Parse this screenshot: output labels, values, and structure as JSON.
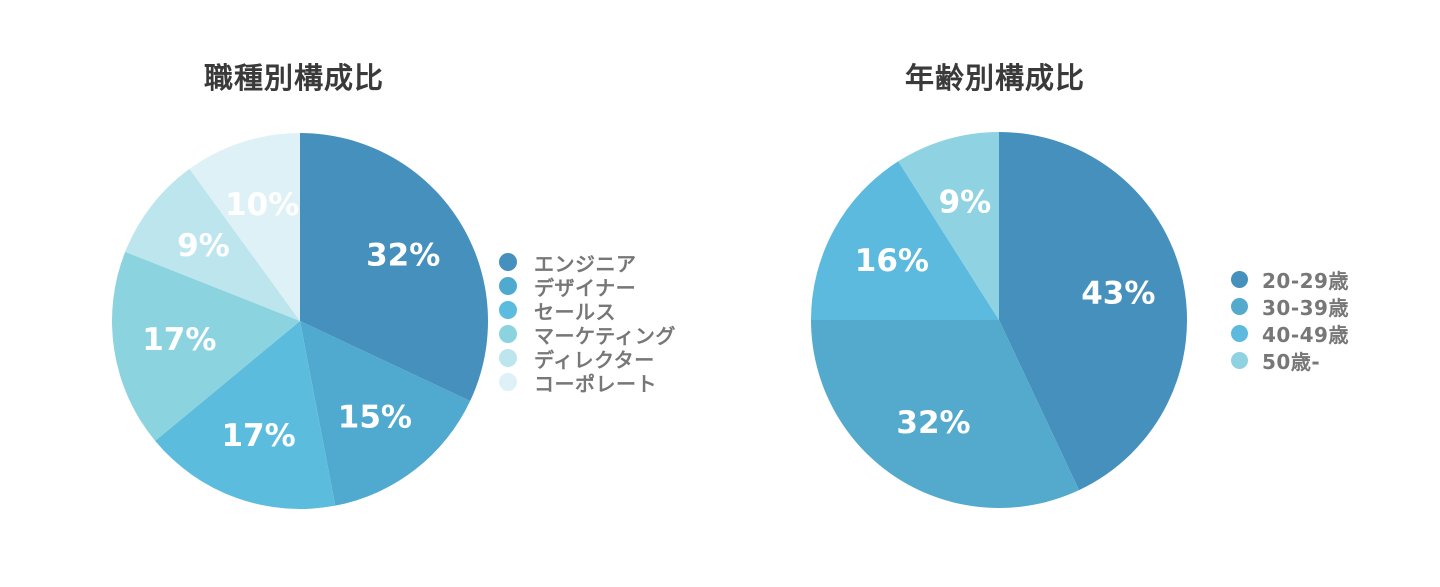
{
  "page": {
    "background_color": "#ffffff"
  },
  "chart_data": [
    {
      "type": "pie",
      "title": "職種別構成比",
      "categories": [
        "エンジニア",
        "デザイナー",
        "セールス",
        "マーケティング",
        "ディレクター",
        "コーポレート"
      ],
      "values": [
        32,
        15,
        17,
        17,
        9,
        10
      ],
      "labels": [
        "32%",
        "15%",
        "17%",
        "17%",
        "9%",
        "10%"
      ],
      "unit": "%",
      "colors": [
        "#4590BD",
        "#50A9CE",
        "#5CBCDE",
        "#8BD3DF",
        "#BCE5EE",
        "#DDF1F7"
      ],
      "start_angle_deg": 0,
      "direction": "clockwise",
      "legend_position": "right",
      "slice_label_color": "#FFFFFF"
    },
    {
      "type": "pie",
      "title": "年齢別構成比",
      "categories": [
        "20-29歳",
        "30-39歳",
        "40-49歳",
        "50歳-"
      ],
      "values": [
        43,
        32,
        16,
        9
      ],
      "labels": [
        "43%",
        "32%",
        "16%",
        "9%"
      ],
      "unit": "%",
      "colors": [
        "#4590BD",
        "#53AACD",
        "#5CBADE",
        "#8FD3E3"
      ],
      "start_angle_deg": 0,
      "direction": "clockwise",
      "legend_position": "right",
      "slice_label_color": "#FFFFFF"
    }
  ],
  "styles": {
    "title_color": "#3a3a3a",
    "legend_text_color": "#777777"
  }
}
